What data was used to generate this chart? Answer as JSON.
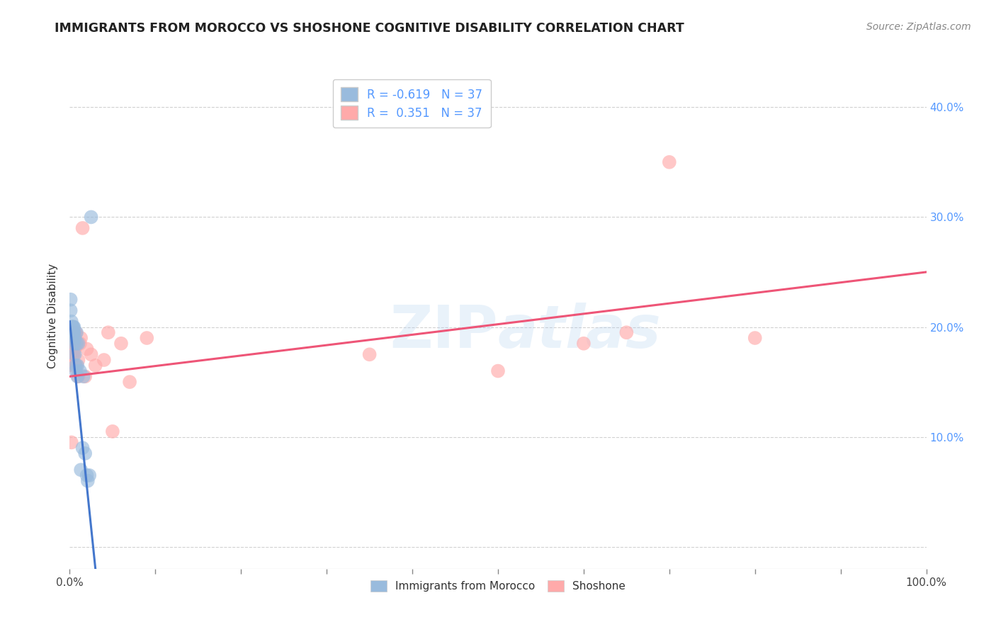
{
  "title": "IMMIGRANTS FROM MOROCCO VS SHOSHONE COGNITIVE DISABILITY CORRELATION CHART",
  "source": "Source: ZipAtlas.com",
  "ylabel": "Cognitive Disability",
  "watermark": "ZIPatlas",
  "legend_r1": "R = -0.619",
  "legend_n1": "N = 37",
  "legend_r2": "R =  0.351",
  "legend_n2": "N = 37",
  "legend_label1": "Immigrants from Morocco",
  "legend_label2": "Shoshone",
  "xlim": [
    0.0,
    1.0
  ],
  "ylim": [
    -0.02,
    0.44
  ],
  "xticklabels": [
    "0.0%",
    "",
    "",
    "",
    "",
    "",
    "",
    "",
    "",
    "",
    "100.0%"
  ],
  "xticks": [
    0.0,
    0.1,
    0.2,
    0.3,
    0.4,
    0.5,
    0.6,
    0.7,
    0.8,
    0.9,
    1.0
  ],
  "yticks": [
    0.0,
    0.1,
    0.2,
    0.3,
    0.4
  ],
  "yticklabels_right": [
    "",
    "10.0%",
    "20.0%",
    "30.0%",
    "40.0%"
  ],
  "color_blue": "#99BBDD",
  "color_pink": "#FFAAAA",
  "color_blue_line": "#4477CC",
  "color_pink_line": "#EE5577",
  "blue_scatter_x": [
    0.001,
    0.001,
    0.002,
    0.002,
    0.002,
    0.003,
    0.003,
    0.003,
    0.003,
    0.004,
    0.004,
    0.004,
    0.004,
    0.004,
    0.004,
    0.005,
    0.005,
    0.005,
    0.005,
    0.006,
    0.006,
    0.007,
    0.007,
    0.008,
    0.008,
    0.009,
    0.009,
    0.01,
    0.012,
    0.013,
    0.015,
    0.016,
    0.018,
    0.02,
    0.021,
    0.023,
    0.025
  ],
  "blue_scatter_y": [
    0.215,
    0.225,
    0.2,
    0.195,
    0.205,
    0.195,
    0.2,
    0.195,
    0.2,
    0.195,
    0.2,
    0.195,
    0.195,
    0.2,
    0.195,
    0.2,
    0.195,
    0.195,
    0.185,
    0.19,
    0.175,
    0.165,
    0.16,
    0.195,
    0.185,
    0.155,
    0.165,
    0.185,
    0.16,
    0.07,
    0.09,
    0.155,
    0.085,
    0.065,
    0.06,
    0.065,
    0.3
  ],
  "pink_scatter_x": [
    0.001,
    0.002,
    0.002,
    0.003,
    0.003,
    0.004,
    0.004,
    0.004,
    0.005,
    0.005,
    0.006,
    0.006,
    0.007,
    0.007,
    0.008,
    0.009,
    0.01,
    0.01,
    0.012,
    0.013,
    0.015,
    0.018,
    0.02,
    0.025,
    0.03,
    0.04,
    0.045,
    0.05,
    0.06,
    0.07,
    0.09,
    0.35,
    0.5,
    0.6,
    0.65,
    0.7,
    0.8
  ],
  "pink_scatter_y": [
    0.165,
    0.17,
    0.095,
    0.175,
    0.185,
    0.175,
    0.165,
    0.185,
    0.175,
    0.195,
    0.18,
    0.185,
    0.195,
    0.195,
    0.165,
    0.185,
    0.155,
    0.17,
    0.185,
    0.19,
    0.29,
    0.155,
    0.18,
    0.175,
    0.165,
    0.17,
    0.195,
    0.105,
    0.185,
    0.15,
    0.19,
    0.175,
    0.16,
    0.185,
    0.195,
    0.35,
    0.19
  ],
  "blue_line_x": [
    0.0,
    0.03
  ],
  "blue_line_y": [
    0.205,
    -0.02
  ],
  "pink_line_x": [
    0.0,
    1.0
  ],
  "pink_line_y": [
    0.155,
    0.25
  ],
  "background_color": "#FFFFFF",
  "grid_color": "#CCCCCC",
  "title_color": "#222222",
  "axis_label_color": "#333333",
  "right_tick_color": "#5599FF",
  "bottom_tick_color": "#444444"
}
